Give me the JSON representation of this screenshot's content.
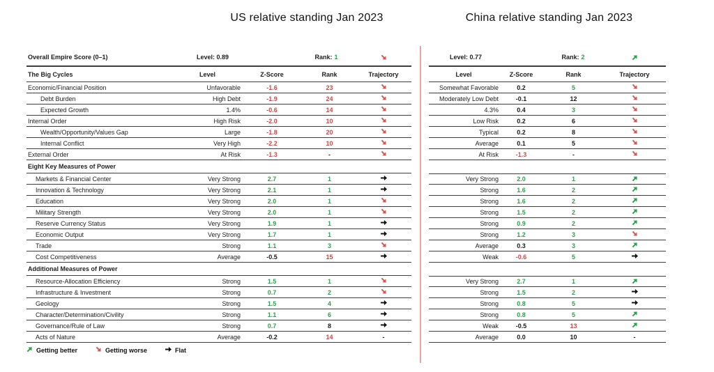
{
  "us": {
    "title": "US relative standing Jan 2023",
    "overall": {
      "label": "Overall Empire Score (0–1)",
      "level": "Level: 0.89",
      "rank_label": "Rank:",
      "rank": "1",
      "trajectory": "down"
    },
    "header": {
      "col1": "The Big Cycles",
      "level": "Level",
      "zscore": "Z-Score",
      "rank": "Rank",
      "trajectory": "Trajectory"
    }
  },
  "china": {
    "title": "China relative standing Jan 2023",
    "overall": {
      "level": "Level: 0.77",
      "rank_label": "Rank:",
      "rank": "2",
      "trajectory": "up"
    },
    "header": {
      "level": "Level",
      "zscore": "Z-Score",
      "rank": "Rank",
      "trajectory": "Trajectory"
    }
  },
  "rows": [
    {
      "t": "data",
      "ind": 0,
      "label": "Economic/Financial Position",
      "us": {
        "lv": "Unfavorable",
        "z": "-1.6",
        "zc": "r",
        "rk": "23",
        "rc": "r",
        "tj": "down"
      },
      "cn": {
        "lv": "Somewhat Favorable",
        "z": "0.2",
        "zc": "k",
        "rk": "5",
        "rc": "g",
        "tj": "down"
      }
    },
    {
      "t": "data",
      "ind": 2,
      "label": "Debt Burden",
      "us": {
        "lv": "High Debt",
        "z": "-1.9",
        "zc": "r",
        "rk": "24",
        "rc": "r",
        "tj": "down"
      },
      "cn": {
        "lv": "Moderately Low Debt",
        "z": "-0.1",
        "zc": "k",
        "rk": "12",
        "rc": "k",
        "tj": "down"
      }
    },
    {
      "t": "data",
      "ind": 2,
      "label": "Expected Growth",
      "us": {
        "lv": "1.4%",
        "z": "-0.6",
        "zc": "r",
        "rk": "14",
        "rc": "r",
        "tj": "down"
      },
      "cn": {
        "lv": "4.3%",
        "z": "0.4",
        "zc": "k",
        "rk": "3",
        "rc": "g",
        "tj": "down"
      }
    },
    {
      "t": "data",
      "ind": 0,
      "label": "Internal Order",
      "us": {
        "lv": "High Risk",
        "z": "-2.0",
        "zc": "r",
        "rk": "10",
        "rc": "r",
        "tj": "down"
      },
      "cn": {
        "lv": "Low Risk",
        "z": "0.2",
        "zc": "k",
        "rk": "6",
        "rc": "k",
        "tj": "down"
      }
    },
    {
      "t": "data",
      "ind": 2,
      "label": "Wealth/Opportunity/Values Gap",
      "us": {
        "lv": "Large",
        "z": "-1.8",
        "zc": "r",
        "rk": "20",
        "rc": "r",
        "tj": "down"
      },
      "cn": {
        "lv": "Typical",
        "z": "0.2",
        "zc": "k",
        "rk": "8",
        "rc": "k",
        "tj": "down"
      }
    },
    {
      "t": "data",
      "ind": 2,
      "label": "Internal Conflict",
      "us": {
        "lv": "Very High",
        "z": "-2.2",
        "zc": "r",
        "rk": "10",
        "rc": "r",
        "tj": "down"
      },
      "cn": {
        "lv": "Average",
        "z": "0.1",
        "zc": "k",
        "rk": "5",
        "rc": "k",
        "tj": "down"
      }
    },
    {
      "t": "data",
      "ind": 0,
      "label": "External Order",
      "us": {
        "lv": "At Risk",
        "z": "-1.3",
        "zc": "r",
        "rk": "-",
        "rc": "k",
        "tj": "down"
      },
      "cn": {
        "lv": "At Risk",
        "z": "-1.3",
        "zc": "r",
        "rk": "-",
        "rc": "k",
        "tj": "down"
      }
    },
    {
      "t": "section",
      "label": "Eight Key Measures of Power"
    },
    {
      "t": "data",
      "ind": 1,
      "label": "Markets & Financial Center",
      "us": {
        "lv": "Very Strong",
        "z": "2.7",
        "zc": "g",
        "rk": "1",
        "rc": "g",
        "tj": "flat"
      },
      "cn": {
        "lv": "Very Strong",
        "z": "2.0",
        "zc": "g",
        "rk": "1",
        "rc": "g",
        "tj": "up"
      }
    },
    {
      "t": "data",
      "ind": 1,
      "label": "Innovation & Technology",
      "us": {
        "lv": "Very Strong",
        "z": "2.1",
        "zc": "g",
        "rk": "1",
        "rc": "g",
        "tj": "flat"
      },
      "cn": {
        "lv": "Strong",
        "z": "1.6",
        "zc": "g",
        "rk": "2",
        "rc": "g",
        "tj": "up"
      }
    },
    {
      "t": "data",
      "ind": 1,
      "label": "Education",
      "us": {
        "lv": "Very Strong",
        "z": "2.0",
        "zc": "g",
        "rk": "1",
        "rc": "g",
        "tj": "down"
      },
      "cn": {
        "lv": "Strong",
        "z": "1.6",
        "zc": "g",
        "rk": "2",
        "rc": "g",
        "tj": "up"
      }
    },
    {
      "t": "data",
      "ind": 1,
      "label": "Military Strength",
      "us": {
        "lv": "Very Strong",
        "z": "2.0",
        "zc": "g",
        "rk": "1",
        "rc": "g",
        "tj": "down"
      },
      "cn": {
        "lv": "Strong",
        "z": "1.5",
        "zc": "g",
        "rk": "2",
        "rc": "g",
        "tj": "up"
      }
    },
    {
      "t": "data",
      "ind": 1,
      "label": "Reserve Currency Status",
      "us": {
        "lv": "Very Strong",
        "z": "1.9",
        "zc": "g",
        "rk": "1",
        "rc": "g",
        "tj": "flat"
      },
      "cn": {
        "lv": "Strong",
        "z": "0.9",
        "zc": "g",
        "rk": "2",
        "rc": "g",
        "tj": "up"
      }
    },
    {
      "t": "data",
      "ind": 1,
      "label": "Economic Output",
      "us": {
        "lv": "Very Strong",
        "z": "1.7",
        "zc": "g",
        "rk": "1",
        "rc": "g",
        "tj": "flat"
      },
      "cn": {
        "lv": "Strong",
        "z": "1.2",
        "zc": "g",
        "rk": "3",
        "rc": "g",
        "tj": "down"
      }
    },
    {
      "t": "data",
      "ind": 1,
      "label": "Trade",
      "us": {
        "lv": "Strong",
        "z": "1.1",
        "zc": "g",
        "rk": "3",
        "rc": "g",
        "tj": "down"
      },
      "cn": {
        "lv": "Average",
        "z": "0.3",
        "zc": "k",
        "rk": "3",
        "rc": "g",
        "tj": "up"
      }
    },
    {
      "t": "data",
      "ind": 1,
      "label": "Cost Competitiveness",
      "us": {
        "lv": "Average",
        "z": "-0.5",
        "zc": "k",
        "rk": "15",
        "rc": "r",
        "tj": "flat"
      },
      "cn": {
        "lv": "Weak",
        "z": "-0.6",
        "zc": "r",
        "rk": "5",
        "rc": "g",
        "tj": "flat"
      }
    },
    {
      "t": "section",
      "label": "Additional Measures of Power"
    },
    {
      "t": "data",
      "ind": 1,
      "label": "Resource-Allocation Efficiency",
      "us": {
        "lv": "Strong",
        "z": "1.5",
        "zc": "g",
        "rk": "1",
        "rc": "g",
        "tj": "down"
      },
      "cn": {
        "lv": "Very Strong",
        "z": "2.7",
        "zc": "g",
        "rk": "1",
        "rc": "g",
        "tj": "up"
      }
    },
    {
      "t": "data",
      "ind": 1,
      "label": "Infrastructure & Investment",
      "us": {
        "lv": "Strong",
        "z": "0.7",
        "zc": "g",
        "rk": "2",
        "rc": "g",
        "tj": "down"
      },
      "cn": {
        "lv": "Strong",
        "z": "1.5",
        "zc": "g",
        "rk": "2",
        "rc": "g",
        "tj": "flat"
      }
    },
    {
      "t": "data",
      "ind": 1,
      "label": "Geology",
      "us": {
        "lv": "Strong",
        "z": "1.5",
        "zc": "g",
        "rk": "4",
        "rc": "g",
        "tj": "flat"
      },
      "cn": {
        "lv": "Strong",
        "z": "0.8",
        "zc": "g",
        "rk": "5",
        "rc": "g",
        "tj": "flat"
      }
    },
    {
      "t": "data",
      "ind": 1,
      "label": "Character/Determination/Civility",
      "us": {
        "lv": "Strong",
        "z": "1.1",
        "zc": "g",
        "rk": "6",
        "rc": "g",
        "tj": "flat"
      },
      "cn": {
        "lv": "Strong",
        "z": "0.8",
        "zc": "g",
        "rk": "5",
        "rc": "g",
        "tj": "up"
      }
    },
    {
      "t": "data",
      "ind": 1,
      "label": "Governance/Rule of Law",
      "us": {
        "lv": "Strong",
        "z": "0.7",
        "zc": "g",
        "rk": "8",
        "rc": "k",
        "tj": "flat"
      },
      "cn": {
        "lv": "Weak",
        "z": "-0.5",
        "zc": "k",
        "rk": "13",
        "rc": "r",
        "tj": "up"
      }
    },
    {
      "t": "data",
      "ind": 1,
      "label": "Acts of Nature",
      "us": {
        "lv": "Average",
        "z": "-0.2",
        "zc": "k",
        "rk": "14",
        "rc": "r",
        "tj": "dash"
      },
      "cn": {
        "lv": "Average",
        "z": "0.0",
        "zc": "k",
        "rk": "10",
        "rc": "k",
        "tj": "dash"
      }
    }
  ],
  "legend": [
    {
      "icon": "up",
      "label": "Getting better"
    },
    {
      "icon": "down",
      "label": "Getting worse"
    },
    {
      "icon": "flat",
      "label": "Flat"
    }
  ],
  "colors": {
    "green": "#2f9e4f",
    "red": "#c24b48",
    "arrow_red": "#ce5a55",
    "line": "#3d3d3d",
    "divider": "#e7a79f"
  }
}
